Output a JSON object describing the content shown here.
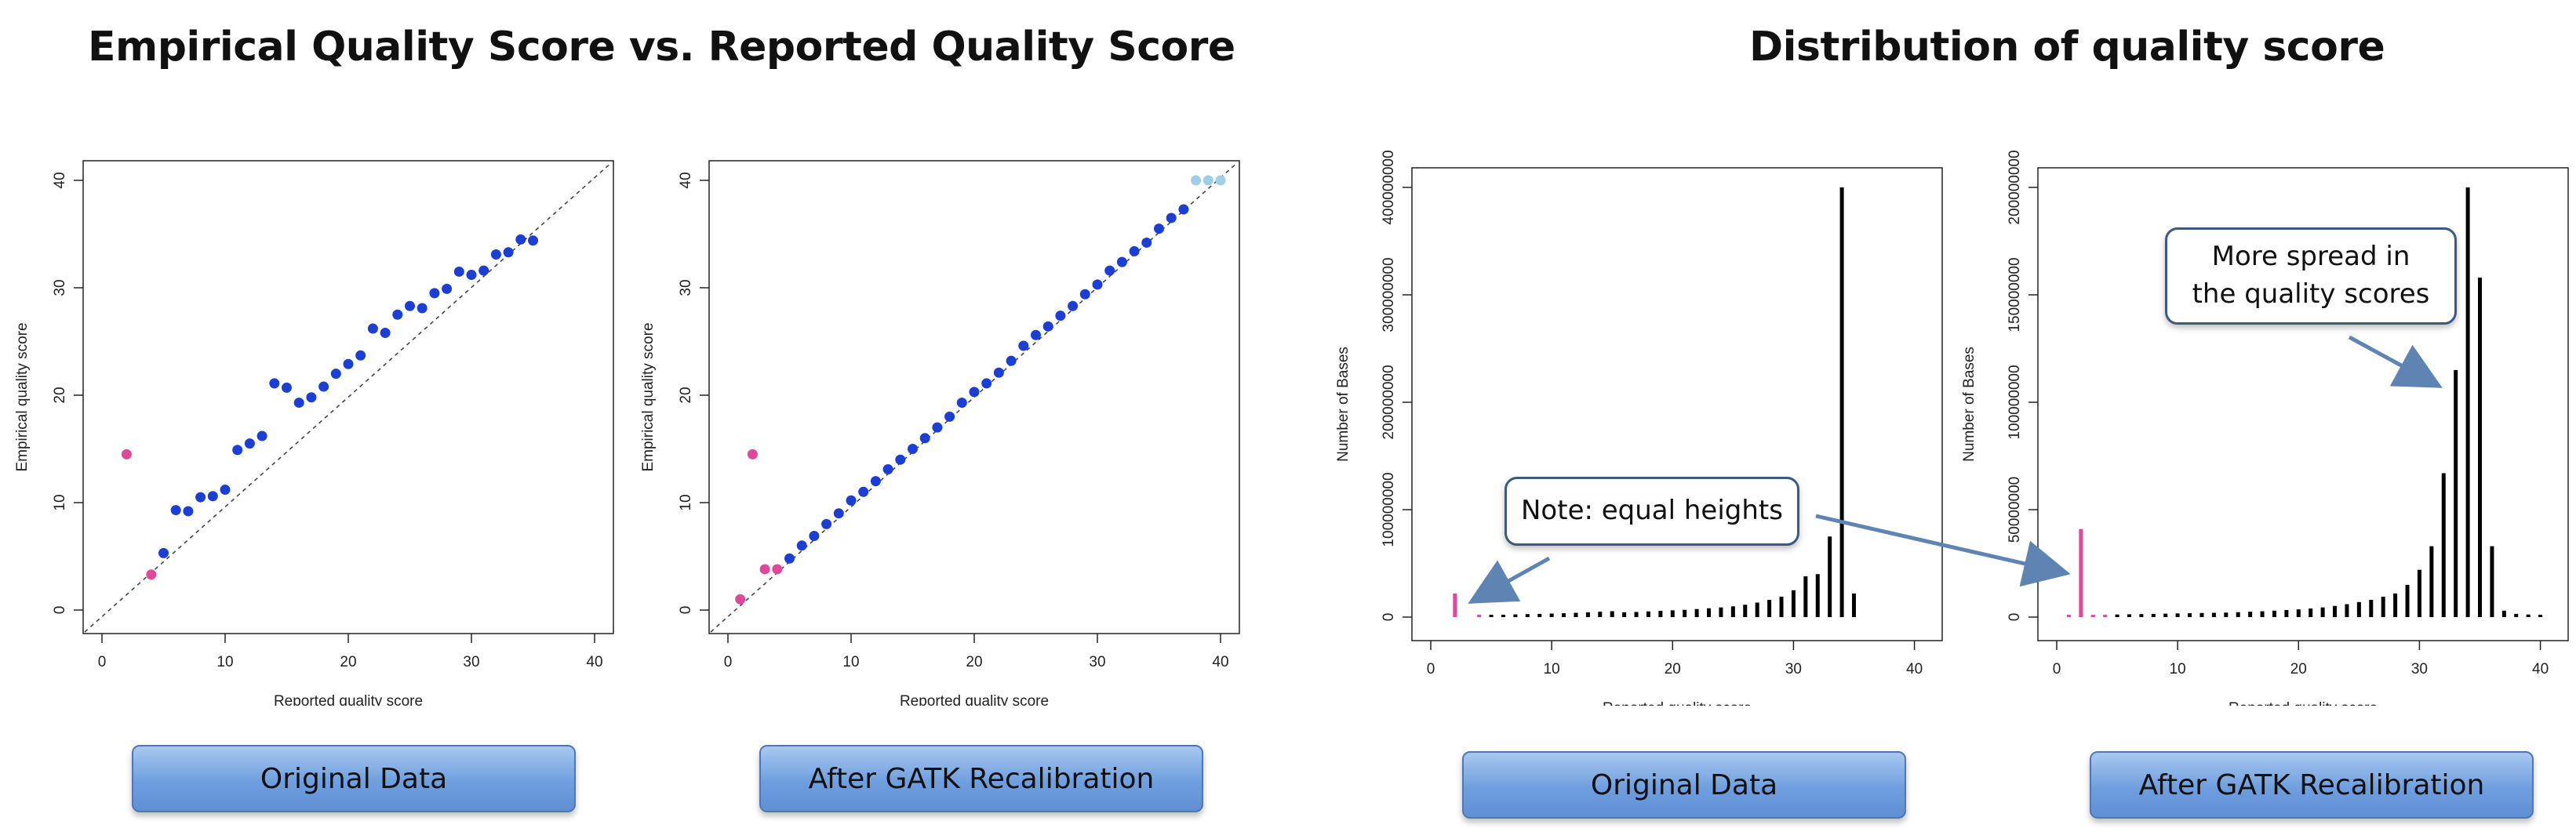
{
  "headings": {
    "left": "Empirical Quality Score vs. Reported Quality Score",
    "right": "Distribution of quality score"
  },
  "captions": [
    "Original Data",
    "After GATK Recalibration",
    "Original Data",
    "After GATK Recalibration"
  ],
  "callouts": {
    "note": "Note: equal heights",
    "spread_line1": "More spread in",
    "spread_line2": "the quality scores"
  },
  "colors": {
    "blue": "#1b3fd6",
    "pink": "#e0489a",
    "lightblue": "#9fcfe6",
    "black": "#000000",
    "arrow": "#5e84b3"
  },
  "chart_data": [
    {
      "type": "scatter",
      "caption": "Original Data",
      "xlabel": "Reported quality score",
      "ylabel": "Empirical quality score",
      "xlim": [
        0,
        40
      ],
      "ylim": [
        0,
        40
      ],
      "xticks": [
        0,
        10,
        20,
        30,
        40
      ],
      "yticks": [
        0,
        10,
        20,
        30,
        40
      ],
      "diagonal": true,
      "series": [
        {
          "color": "pink",
          "points": [
            [
              2,
              14.5
            ],
            [
              4,
              3.3
            ]
          ]
        },
        {
          "color": "blue",
          "points": [
            [
              5,
              5.3
            ],
            [
              6,
              9.3
            ],
            [
              7,
              9.2
            ],
            [
              8,
              10.5
            ],
            [
              9,
              10.6
            ],
            [
              10,
              11.2
            ],
            [
              11,
              14.9
            ],
            [
              12,
              15.5
            ],
            [
              13,
              16.2
            ],
            [
              14,
              21.1
            ],
            [
              15,
              20.7
            ],
            [
              16,
              19.3
            ],
            [
              17,
              19.8
            ],
            [
              18,
              20.8
            ],
            [
              19,
              22
            ],
            [
              20,
              22.9
            ],
            [
              21,
              23.7
            ],
            [
              22,
              26.2
            ],
            [
              23,
              25.8
            ],
            [
              24,
              27.5
            ],
            [
              25,
              28.3
            ],
            [
              26,
              28.1
            ],
            [
              27,
              29.5
            ],
            [
              28,
              29.9
            ],
            [
              29,
              31.5
            ],
            [
              30,
              31.2
            ],
            [
              31,
              31.6
            ],
            [
              32,
              33.1
            ],
            [
              33,
              33.3
            ],
            [
              34,
              34.5
            ],
            [
              35,
              34.4
            ]
          ]
        }
      ]
    },
    {
      "type": "scatter",
      "caption": "After GATK Recalibration",
      "xlabel": "Reported quality score",
      "ylabel": "Empirical quality score",
      "xlim": [
        0,
        40
      ],
      "ylim": [
        0,
        40
      ],
      "xticks": [
        0,
        10,
        20,
        30,
        40
      ],
      "yticks": [
        0,
        10,
        20,
        30,
        40
      ],
      "diagonal": true,
      "series": [
        {
          "color": "pink",
          "points": [
            [
              1,
              1
            ],
            [
              2,
              14.5
            ],
            [
              3,
              3.8
            ],
            [
              4,
              3.8
            ]
          ]
        },
        {
          "color": "blue",
          "points": [
            [
              5,
              4.8
            ],
            [
              6,
              6
            ],
            [
              7,
              6.9
            ],
            [
              8,
              8
            ],
            [
              9,
              9
            ],
            [
              10,
              10.2
            ],
            [
              11,
              11
            ],
            [
              12,
              12
            ],
            [
              13,
              13.1
            ],
            [
              14,
              14
            ],
            [
              15,
              15
            ],
            [
              16,
              16
            ],
            [
              17,
              17
            ],
            [
              18,
              18
            ],
            [
              19,
              19.3
            ],
            [
              20,
              20.3
            ],
            [
              21,
              21.1
            ],
            [
              22,
              22.1
            ],
            [
              23,
              23.2
            ],
            [
              24,
              24.6
            ],
            [
              25,
              25.6
            ],
            [
              26,
              26.4
            ],
            [
              27,
              27.4
            ],
            [
              28,
              28.3
            ],
            [
              29,
              29.4
            ],
            [
              30,
              30.3
            ],
            [
              31,
              31.6
            ],
            [
              32,
              32.4
            ],
            [
              33,
              33.4
            ],
            [
              34,
              34.2
            ],
            [
              35,
              35.5
            ],
            [
              36,
              36.5
            ],
            [
              37,
              37.3
            ]
          ]
        },
        {
          "color": "lightblue",
          "points": [
            [
              38,
              40
            ],
            [
              39,
              40
            ],
            [
              40,
              40
            ]
          ]
        }
      ]
    },
    {
      "type": "bar",
      "caption": "Original Data",
      "xlabel": "Reported quality score",
      "ylabel": "Number of Bases",
      "xlim": [
        0,
        41
      ],
      "ylim": [
        0,
        400000000
      ],
      "xticks": [
        0,
        10,
        20,
        30,
        40
      ],
      "yticks": [
        0,
        100000000,
        200000000,
        300000000,
        400000000
      ],
      "ytick_labels": [
        "0",
        "100000000",
        "200000000",
        "300000000",
        "400000000"
      ],
      "bars": [
        {
          "x": 2,
          "value": 22000000,
          "color": "pink"
        },
        {
          "x": 4,
          "value": 1500000,
          "color": "pink"
        },
        {
          "x": 5,
          "value": 2000000
        },
        {
          "x": 6,
          "value": 2200000
        },
        {
          "x": 7,
          "value": 2500000
        },
        {
          "x": 8,
          "value": 2800000
        },
        {
          "x": 9,
          "value": 3000000
        },
        {
          "x": 10,
          "value": 3300000
        },
        {
          "x": 11,
          "value": 3600000
        },
        {
          "x": 12,
          "value": 4000000
        },
        {
          "x": 13,
          "value": 4500000
        },
        {
          "x": 14,
          "value": 5000000
        },
        {
          "x": 15,
          "value": 5500000
        },
        {
          "x": 16,
          "value": 4500000
        },
        {
          "x": 17,
          "value": 4800000
        },
        {
          "x": 18,
          "value": 5300000
        },
        {
          "x": 19,
          "value": 5800000
        },
        {
          "x": 20,
          "value": 6300000
        },
        {
          "x": 21,
          "value": 6800000
        },
        {
          "x": 22,
          "value": 7500000
        },
        {
          "x": 23,
          "value": 8200000
        },
        {
          "x": 24,
          "value": 9000000
        },
        {
          "x": 25,
          "value": 10000000
        },
        {
          "x": 26,
          "value": 11500000
        },
        {
          "x": 27,
          "value": 13500000
        },
        {
          "x": 28,
          "value": 16000000
        },
        {
          "x": 29,
          "value": 19000000
        },
        {
          "x": 30,
          "value": 25000000
        },
        {
          "x": 31,
          "value": 38000000
        },
        {
          "x": 32,
          "value": 40000000
        },
        {
          "x": 33,
          "value": 75000000
        },
        {
          "x": 34,
          "value": 400000000
        },
        {
          "x": 35,
          "value": 22000000
        }
      ]
    },
    {
      "type": "bar",
      "caption": "After GATK Recalibration",
      "xlabel": "Reported quality score",
      "ylabel": "Number of Bases",
      "xlim": [
        0,
        41
      ],
      "ylim": [
        0,
        200000000
      ],
      "xticks": [
        0,
        10,
        20,
        30,
        40
      ],
      "yticks": [
        0,
        50000000,
        100000000,
        150000000,
        200000000
      ],
      "ytick_labels": [
        "0",
        "50000000",
        "100000000",
        "150000000",
        "200000000"
      ],
      "bars": [
        {
          "x": 1,
          "value": 300000,
          "color": "pink"
        },
        {
          "x": 2,
          "value": 41000000,
          "color": "pink"
        },
        {
          "x": 3,
          "value": 500000,
          "color": "pink"
        },
        {
          "x": 4,
          "value": 600000,
          "color": "pink"
        },
        {
          "x": 5,
          "value": 1200000
        },
        {
          "x": 6,
          "value": 1300000
        },
        {
          "x": 7,
          "value": 1400000
        },
        {
          "x": 8,
          "value": 1500000
        },
        {
          "x": 9,
          "value": 1600000
        },
        {
          "x": 10,
          "value": 1700000
        },
        {
          "x": 11,
          "value": 1800000
        },
        {
          "x": 12,
          "value": 1900000
        },
        {
          "x": 13,
          "value": 2000000
        },
        {
          "x": 14,
          "value": 2100000
        },
        {
          "x": 15,
          "value": 2300000
        },
        {
          "x": 16,
          "value": 2500000
        },
        {
          "x": 17,
          "value": 2700000
        },
        {
          "x": 18,
          "value": 3000000
        },
        {
          "x": 19,
          "value": 3300000
        },
        {
          "x": 20,
          "value": 3600000
        },
        {
          "x": 21,
          "value": 4000000
        },
        {
          "x": 22,
          "value": 4500000
        },
        {
          "x": 23,
          "value": 5200000
        },
        {
          "x": 24,
          "value": 6000000
        },
        {
          "x": 25,
          "value": 7000000
        },
        {
          "x": 26,
          "value": 8000000
        },
        {
          "x": 27,
          "value": 9500000
        },
        {
          "x": 28,
          "value": 11000000
        },
        {
          "x": 29,
          "value": 15000000
        },
        {
          "x": 30,
          "value": 22000000
        },
        {
          "x": 31,
          "value": 33000000
        },
        {
          "x": 32,
          "value": 67000000
        },
        {
          "x": 33,
          "value": 115000000
        },
        {
          "x": 34,
          "value": 200000000
        },
        {
          "x": 35,
          "value": 158000000
        },
        {
          "x": 36,
          "value": 33000000
        },
        {
          "x": 37,
          "value": 3000000
        },
        {
          "x": 38,
          "value": 1500000
        },
        {
          "x": 39,
          "value": 1200000
        },
        {
          "x": 40,
          "value": 1000000
        }
      ]
    }
  ]
}
